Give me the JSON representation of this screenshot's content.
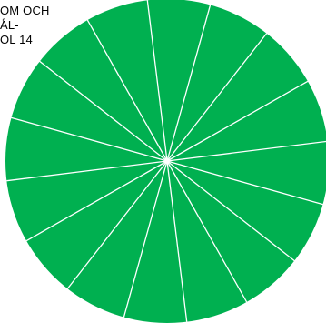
{
  "caption": {
    "lines": [
      "OM OCH",
      "ÅL-",
      "OL 14"
    ]
  },
  "colors": {
    "disc_fill": "#00b050",
    "divider": "#ffffff",
    "text": "#000000"
  },
  "segment_count": 16
}
